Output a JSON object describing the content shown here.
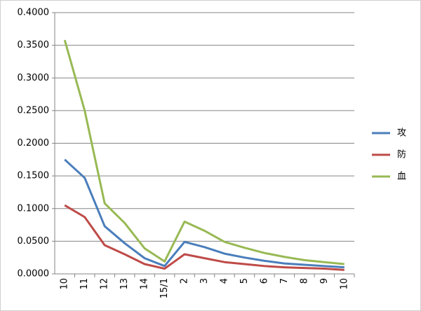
{
  "chart_data": {
    "type": "line",
    "categories": [
      "10",
      "11",
      "12",
      "13",
      "14",
      "15/1",
      "2",
      "3",
      "4",
      "5",
      "6",
      "7",
      "8",
      "9",
      "10"
    ],
    "series": [
      {
        "name": "攻",
        "color": "#4a7ebb",
        "values": [
          0.175,
          0.147,
          0.073,
          0.047,
          0.024,
          0.012,
          0.049,
          0.041,
          0.031,
          0.025,
          0.02,
          0.016,
          0.014,
          0.012,
          0.01
        ]
      },
      {
        "name": "防",
        "color": "#be4b48",
        "values": [
          0.105,
          0.087,
          0.044,
          0.03,
          0.015,
          0.008,
          0.03,
          0.024,
          0.018,
          0.015,
          0.012,
          0.01,
          0.009,
          0.008,
          0.006
        ]
      },
      {
        "name": "血",
        "color": "#98b954",
        "values": [
          0.358,
          0.25,
          0.108,
          0.078,
          0.039,
          0.019,
          0.08,
          0.066,
          0.049,
          0.04,
          0.032,
          0.026,
          0.021,
          0.018,
          0.015
        ]
      }
    ],
    "ylim": [
      0,
      0.4
    ],
    "yticks": [
      {
        "value": 0,
        "label": "0.0000"
      },
      {
        "value": 0.05,
        "label": "0.0500"
      },
      {
        "value": 0.1,
        "label": "0.1000"
      },
      {
        "value": 0.15,
        "label": "0.1500"
      },
      {
        "value": 0.2,
        "label": "0.2000"
      },
      {
        "value": 0.25,
        "label": "0.2500"
      },
      {
        "value": 0.3,
        "label": "0.3000"
      },
      {
        "value": 0.35,
        "label": "0.3500"
      },
      {
        "value": 0.4,
        "label": "0.4000"
      }
    ],
    "grid": true,
    "legend": "right"
  }
}
